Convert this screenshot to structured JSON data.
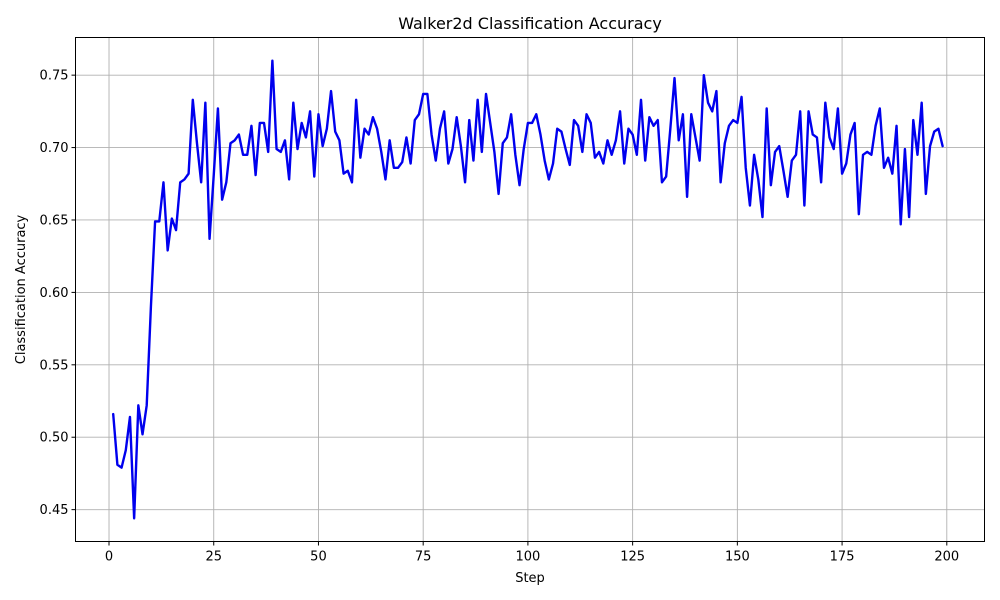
{
  "chart_data": {
    "type": "line",
    "title": "Walker2d Classification Accuracy",
    "xlabel": "Step",
    "ylabel": "Classification Accuracy",
    "xlim": [
      -8,
      209
    ],
    "ylim": [
      0.428,
      0.776
    ],
    "xticks": [
      0,
      25,
      50,
      75,
      100,
      125,
      150,
      175,
      200
    ],
    "xtick_labels": [
      "0",
      "25",
      "50",
      "75",
      "100",
      "125",
      "150",
      "175",
      "200"
    ],
    "yticks": [
      0.45,
      0.5,
      0.55,
      0.6,
      0.65,
      0.7,
      0.75
    ],
    "ytick_labels": [
      "0.45",
      "0.50",
      "0.55",
      "0.60",
      "0.65",
      "0.70",
      "0.75"
    ],
    "grid": true,
    "legend": "none",
    "series": [
      {
        "color": "#0000ee",
        "x": [
          1,
          2,
          3,
          4,
          5,
          6,
          7,
          8,
          9,
          10,
          11,
          12,
          13,
          14,
          15,
          16,
          17,
          18,
          19,
          20,
          21,
          22,
          23,
          24,
          25,
          26,
          27,
          28,
          29,
          30,
          31,
          32,
          33,
          34,
          35,
          36,
          37,
          38,
          39,
          40,
          41,
          42,
          43,
          44,
          45,
          46,
          47,
          48,
          49,
          50,
          51,
          52,
          53,
          54,
          55,
          56,
          57,
          58,
          59,
          60,
          61,
          62,
          63,
          64,
          65,
          66,
          67,
          68,
          69,
          70,
          71,
          72,
          73,
          74,
          75,
          76,
          77,
          78,
          79,
          80,
          81,
          82,
          83,
          84,
          85,
          86,
          87,
          88,
          89,
          90,
          91,
          92,
          93,
          94,
          95,
          96,
          97,
          98,
          99,
          100,
          101,
          102,
          103,
          104,
          105,
          106,
          107,
          108,
          109,
          110,
          111,
          112,
          113,
          114,
          115,
          116,
          117,
          118,
          119,
          120,
          121,
          122,
          123,
          124,
          125,
          126,
          127,
          128,
          129,
          130,
          131,
          132,
          133,
          134,
          135,
          136,
          137,
          138,
          139,
          140,
          141,
          142,
          143,
          144,
          145,
          146,
          147,
          148,
          149,
          150,
          151,
          152,
          153,
          154,
          155,
          156,
          157,
          158,
          159,
          160,
          161,
          162,
          163,
          164,
          165,
          166,
          167,
          168,
          169,
          170,
          171,
          172,
          173,
          174,
          175,
          176,
          177,
          178,
          179,
          180,
          181,
          182,
          183,
          184,
          185,
          186,
          187,
          188,
          189,
          190,
          191,
          192,
          193,
          194,
          195,
          196,
          197,
          198,
          199
        ],
        "y": [
          0.516,
          0.481,
          0.479,
          0.491,
          0.514,
          0.444,
          0.522,
          0.502,
          0.522,
          0.59,
          0.649,
          0.649,
          0.676,
          0.629,
          0.651,
          0.643,
          0.676,
          0.678,
          0.682,
          0.733,
          0.703,
          0.676,
          0.731,
          0.637,
          0.681,
          0.727,
          0.664,
          0.676,
          0.703,
          0.705,
          0.709,
          0.695,
          0.695,
          0.715,
          0.681,
          0.717,
          0.717,
          0.697,
          0.76,
          0.699,
          0.697,
          0.705,
          0.678,
          0.731,
          0.699,
          0.717,
          0.707,
          0.725,
          0.68,
          0.723,
          0.701,
          0.713,
          0.739,
          0.711,
          0.705,
          0.682,
          0.684,
          0.676,
          0.733,
          0.693,
          0.713,
          0.709,
          0.721,
          0.713,
          0.697,
          0.678,
          0.705,
          0.686,
          0.686,
          0.69,
          0.707,
          0.689,
          0.719,
          0.723,
          0.737,
          0.737,
          0.709,
          0.691,
          0.713,
          0.725,
          0.689,
          0.699,
          0.721,
          0.701,
          0.676,
          0.719,
          0.691,
          0.733,
          0.697,
          0.737,
          0.717,
          0.697,
          0.668,
          0.703,
          0.707,
          0.723,
          0.695,
          0.674,
          0.699,
          0.717,
          0.717,
          0.723,
          0.709,
          0.691,
          0.678,
          0.689,
          0.713,
          0.711,
          0.699,
          0.688,
          0.719,
          0.715,
          0.697,
          0.723,
          0.717,
          0.693,
          0.697,
          0.689,
          0.705,
          0.695,
          0.705,
          0.725,
          0.689,
          0.713,
          0.709,
          0.695,
          0.733,
          0.691,
          0.721,
          0.715,
          0.719,
          0.676,
          0.68,
          0.713,
          0.748,
          0.705,
          0.723,
          0.666,
          0.723,
          0.707,
          0.691,
          0.75,
          0.731,
          0.725,
          0.739,
          0.676,
          0.703,
          0.715,
          0.719,
          0.717,
          0.735,
          0.686,
          0.66,
          0.695,
          0.678,
          0.652,
          0.727,
          0.674,
          0.697,
          0.701,
          0.684,
          0.666,
          0.691,
          0.695,
          0.725,
          0.66,
          0.725,
          0.709,
          0.707,
          0.676,
          0.731,
          0.707,
          0.699,
          0.727,
          0.682,
          0.689,
          0.709,
          0.717,
          0.654,
          0.695,
          0.697,
          0.695,
          0.715,
          0.727,
          0.686,
          0.693,
          0.682,
          0.715,
          0.647,
          0.699,
          0.652,
          0.719,
          0.695,
          0.731,
          0.668,
          0.701,
          0.711,
          0.713,
          0.701
        ]
      }
    ]
  }
}
